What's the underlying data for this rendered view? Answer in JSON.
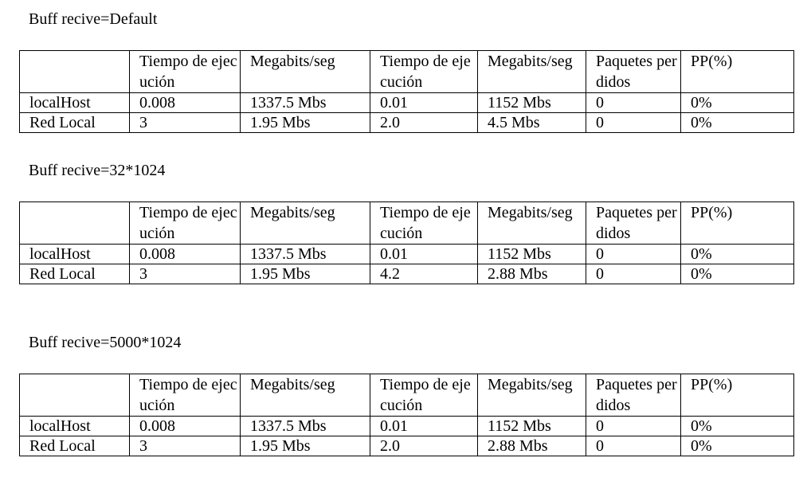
{
  "sections": [
    {
      "title": "Buff recive=Default",
      "headers": [
        "",
        "Tiempo de ejecución",
        "Megabits/seg",
        "Tiempo de ejecución",
        "Megabits/seg",
        "Paquetes perdidos",
        "PP(%)"
      ],
      "rows": [
        [
          "localHost",
          "0.008",
          "1337.5 Mbs",
          "0.01",
          "1152 Mbs",
          "0",
          "0%"
        ],
        [
          "Red Local",
          "3",
          "1.95 Mbs",
          "2.0",
          "4.5 Mbs",
          "0",
          "0%"
        ]
      ]
    },
    {
      "title": "Buff recive=32*1024",
      "headers": [
        "",
        "Tiempo de ejecución",
        "Megabits/seg",
        "Tiempo de ejecución",
        "Megabits/seg",
        "Paquetes perdidos",
        "PP(%)"
      ],
      "rows": [
        [
          "localHost",
          "0.008",
          "1337.5 Mbs",
          "0.01",
          "1152 Mbs",
          "0",
          "0%"
        ],
        [
          "Red Local",
          "3",
          "1.95 Mbs",
          "4.2",
          "2.88 Mbs",
          "0",
          "0%"
        ]
      ]
    },
    {
      "title": "Buff recive=5000*1024",
      "headers": [
        "",
        "Tiempo de ejecución",
        "Megabits/seg",
        "Tiempo de ejecución",
        "Megabits/seg",
        "Paquetes perdidos",
        "PP(%)"
      ],
      "rows": [
        [
          "localHost",
          "0.008",
          "1337.5 Mbs",
          "0.01",
          "1152 Mbs",
          "0",
          "0%"
        ],
        [
          "Red Local",
          "3",
          "1.95 Mbs",
          "2.0",
          "2.88 Mbs",
          "0",
          "0%"
        ]
      ]
    }
  ]
}
